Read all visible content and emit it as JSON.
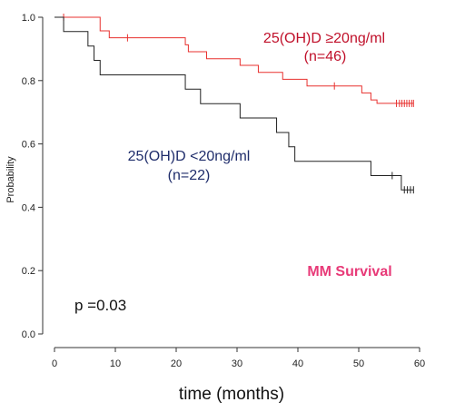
{
  "chart_data": {
    "type": "line",
    "chart_label": "MM Survival",
    "xlabel": "time (months)",
    "ylabel": "Probability",
    "xlim": [
      0,
      62
    ],
    "ylim": [
      0,
      1.03
    ],
    "x_ticks": [
      0,
      10,
      20,
      30,
      40,
      50,
      60
    ],
    "y_ticks": [
      "0.0",
      "0.2",
      "0.4",
      "0.6",
      "0.8",
      "1.0"
    ],
    "grid": false,
    "p_value": "p =0.03",
    "colors": {
      "high": "#e8312f",
      "low": "#222222",
      "high_label": "#c0102a",
      "low_label": "#1f2d6b",
      "title": "#e83a78"
    },
    "series": [
      {
        "name_line1": "25(OH)D ≥20ng/ml",
        "name_line2": "(n=46)",
        "steps": [
          [
            0,
            1.0
          ],
          [
            7.5,
            0.957
          ],
          [
            9,
            0.935
          ],
          [
            21.5,
            0.913
          ],
          [
            22,
            0.891
          ],
          [
            25,
            0.869
          ],
          [
            30.5,
            0.848
          ],
          [
            33.5,
            0.826
          ],
          [
            37.5,
            0.804
          ],
          [
            41.5,
            0.783
          ],
          [
            50.5,
            0.761
          ],
          [
            52,
            0.739
          ],
          [
            53,
            0.728
          ],
          [
            59,
            0.728
          ]
        ],
        "censors": [
          1.5,
          12,
          46,
          56.2,
          56.7,
          57.1,
          57.5,
          57.9,
          58.3,
          58.7,
          59
        ]
      },
      {
        "name_line1": "25(OH)D <20ng/ml",
        "name_line2": "(n=22)",
        "steps": [
          [
            0,
            1.0
          ],
          [
            1.5,
            0.955
          ],
          [
            5.5,
            0.909
          ],
          [
            6.5,
            0.864
          ],
          [
            7.5,
            0.818
          ],
          [
            21.5,
            0.773
          ],
          [
            24,
            0.727
          ],
          [
            30.5,
            0.682
          ],
          [
            36.5,
            0.636
          ],
          [
            38.5,
            0.591
          ],
          [
            39.5,
            0.545
          ],
          [
            52,
            0.5
          ],
          [
            57,
            0.455
          ],
          [
            59,
            0.455
          ]
        ],
        "censors": [
          55.5,
          57.5,
          58,
          58.5,
          59
        ]
      }
    ]
  }
}
